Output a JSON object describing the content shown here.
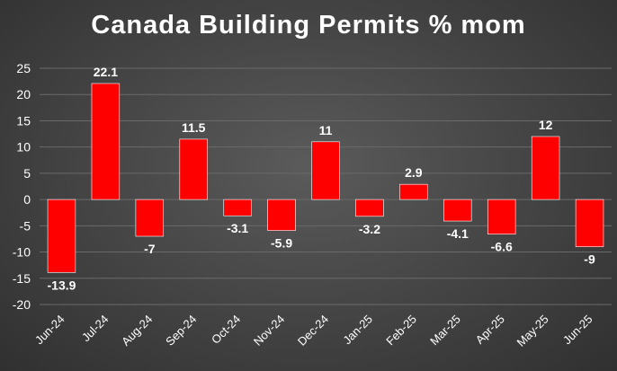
{
  "chart_data": {
    "type": "bar",
    "title": "Canada Building Permits % mom",
    "xlabel": "",
    "ylabel": "",
    "categories": [
      "Jun-24",
      "Jul-24",
      "Aug-24",
      "Sep-24",
      "Oct-24",
      "Nov-24",
      "Dec-24",
      "Jan-25",
      "Feb-25",
      "Mar-25",
      "Apr-25",
      "May-25",
      "Jun-25"
    ],
    "values": [
      -13.9,
      22.1,
      -7,
      11.5,
      -3.1,
      -5.9,
      11,
      -3.2,
      2.9,
      -4.1,
      -6.6,
      12,
      -9
    ],
    "data_labels": [
      "-13.9",
      "22.1",
      "-7",
      "11.5",
      "-3.1",
      "-5.9",
      "11",
      "-3.2",
      "2.9",
      "-4.1",
      "-6.6",
      "12",
      "-9"
    ],
    "ylim": [
      -20,
      25
    ],
    "yticks": [
      25,
      20,
      15,
      10,
      5,
      0,
      -5,
      -10,
      -15,
      -20
    ],
    "grid": true,
    "legend": "none",
    "colors": {
      "bar": "#ff0000",
      "background": "#474747",
      "text": "#ffffff",
      "grid": "#6a6a6a"
    }
  }
}
